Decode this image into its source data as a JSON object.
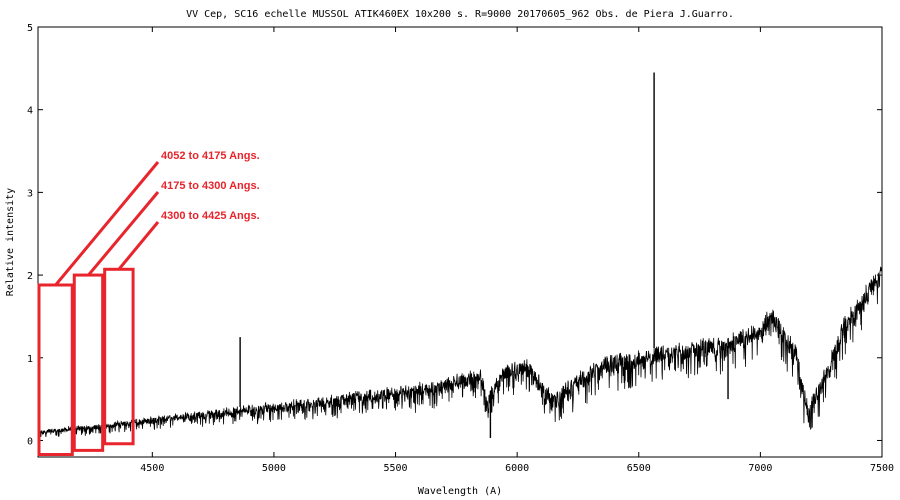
{
  "chart_data": {
    "type": "line",
    "title": "VV Cep,  SC16  echelle MUSSOL  ATIK460EX  10x200 s. R=9000  20170605_962  Obs. de Piera   J.Guarro.",
    "xlabel": "Wavelength (A)",
    "ylabel": "Relative intensity",
    "xlim": [
      4030,
      7500
    ],
    "ylim": [
      -0.2,
      5
    ],
    "xticks": [
      4500,
      5000,
      5500,
      6000,
      6500,
      7000,
      7500
    ],
    "yticks": [
      0,
      1,
      2,
      3,
      4,
      5
    ],
    "grid": false,
    "line_color": "#000000",
    "spectrum_envelope": {
      "x": [
        4030,
        4100,
        4175,
        4250,
        4300,
        4425,
        4550,
        4700,
        4850,
        5000,
        5150,
        5300,
        5450,
        5550,
        5650,
        5750,
        5850,
        5880,
        5950,
        6050,
        6100,
        6150,
        6250,
        6350,
        6450,
        6550,
        6600,
        6700,
        6800,
        6850,
        6900,
        6950,
        7000,
        7040,
        7080,
        7150,
        7180,
        7200,
        7250,
        7300,
        7350,
        7400,
        7450,
        7500
      ],
      "y": [
        0.12,
        0.14,
        0.17,
        0.18,
        0.2,
        0.25,
        0.3,
        0.35,
        0.4,
        0.45,
        0.5,
        0.56,
        0.62,
        0.66,
        0.7,
        0.78,
        0.85,
        0.55,
        0.9,
        0.95,
        0.72,
        0.55,
        0.8,
        1.0,
        1.05,
        1.1,
        1.15,
        1.15,
        1.25,
        1.2,
        1.3,
        1.35,
        1.4,
        1.6,
        1.45,
        1.1,
        0.6,
        0.5,
        0.75,
        1.1,
        1.5,
        1.7,
        1.95,
        2.1
      ]
    },
    "emission_lines": [
      {
        "x": 4861,
        "y": 1.25
      },
      {
        "x": 6563,
        "y": 4.45
      }
    ],
    "absorption_lines": [
      {
        "x": 5890,
        "y": 0.03
      },
      {
        "x": 6867,
        "y": 0.5
      }
    ],
    "annotations": [
      {
        "label": "4052 to 4175  Angs.",
        "x_from": 4030,
        "x_to": 4175,
        "y_bottom": -0.17,
        "y_top": 1.88
      },
      {
        "label": "4175 to 4300 Angs.",
        "x_from": 4175,
        "x_to": 4300,
        "y_bottom": -0.12,
        "y_top": 2.0
      },
      {
        "label": "4300 to 4425 Angs.",
        "x_from": 4300,
        "x_to": 4425,
        "y_bottom": -0.04,
        "y_top": 2.07
      }
    ],
    "annotation_color": "#e8242c"
  }
}
